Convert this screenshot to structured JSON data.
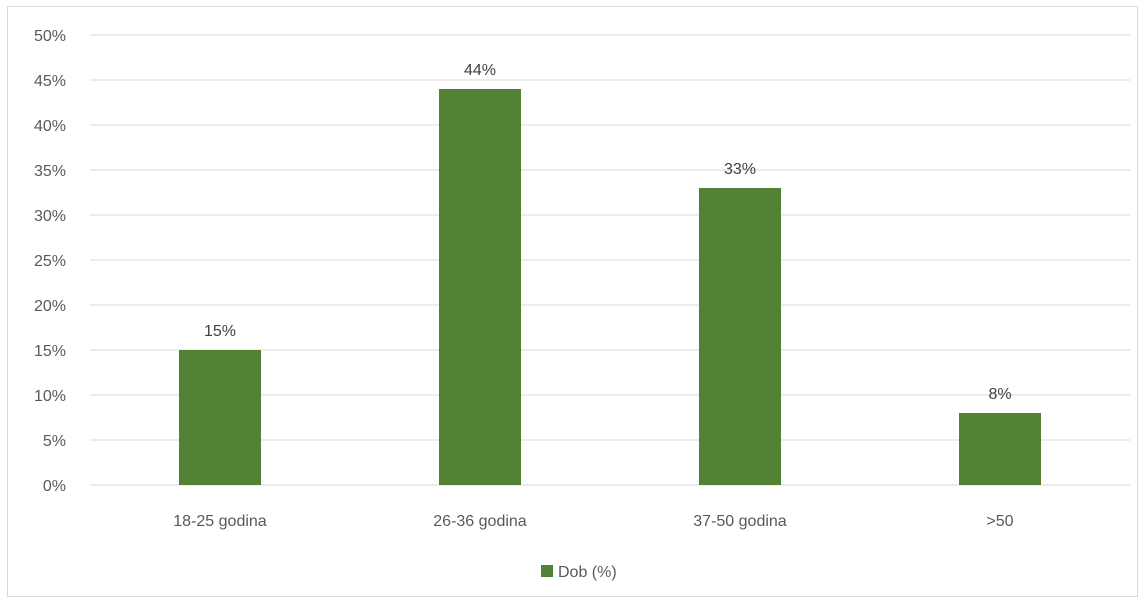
{
  "chart_data": {
    "type": "bar",
    "categories": [
      "18-25 godina",
      "26-36 godina",
      "37-50 godina",
      ">50"
    ],
    "series": [
      {
        "name": "Dob (%)",
        "values": [
          15,
          44,
          33,
          8
        ],
        "color": "#548235"
      }
    ],
    "data_labels": [
      "15%",
      "44%",
      "33%",
      "8%"
    ],
    "y_ticks": [
      "0%",
      "5%",
      "10%",
      "15%",
      "20%",
      "25%",
      "30%",
      "35%",
      "40%",
      "45%",
      "50%"
    ],
    "ylim": [
      0,
      50
    ],
    "grid": true,
    "grid_color": "#d9d9d9",
    "legend": {
      "position": "bottom",
      "label": "Dob (%)"
    },
    "title": "",
    "xlabel": "",
    "ylabel": ""
  }
}
